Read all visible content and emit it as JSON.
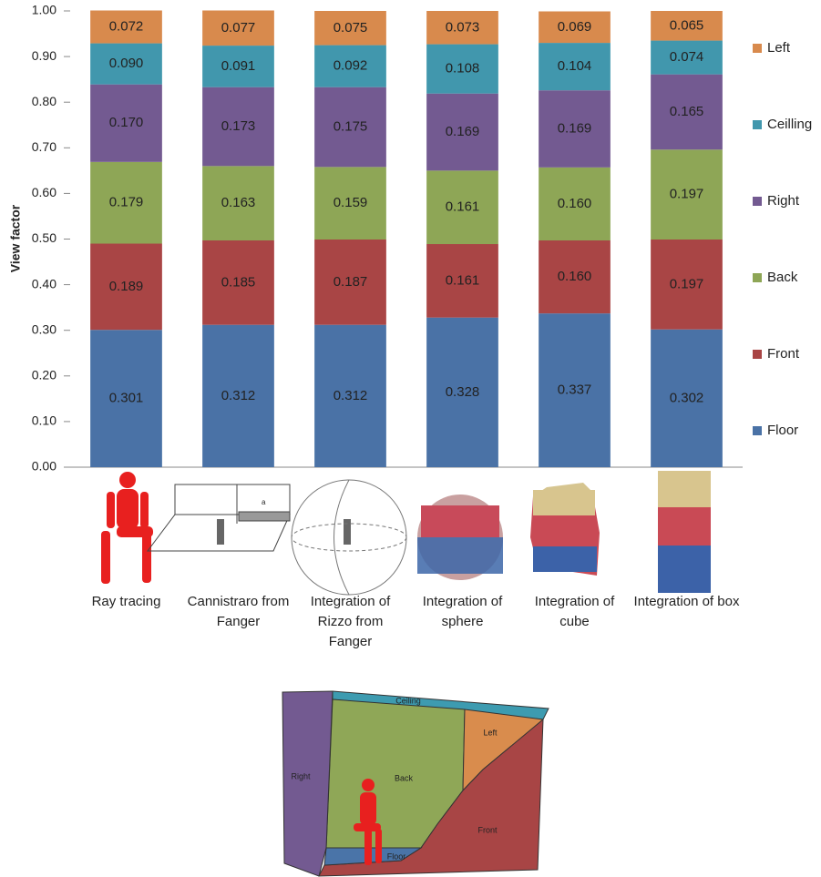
{
  "chart_data": {
    "type": "stacked_bar",
    "y_label": "View factor",
    "categories": [
      "Ray tracing",
      "Cannistraro from Fanger",
      "Integration of Rizzo from Fanger",
      "Integration of sphere",
      "Integration of cube",
      "Integration of box"
    ],
    "series": [
      {
        "name": "Floor",
        "color": "#4a72a6",
        "values": [
          0.301,
          0.312,
          0.312,
          0.328,
          0.337,
          0.302
        ],
        "value_labels": [
          "0.301",
          "0.312",
          "0.312",
          "0.328",
          "0.337",
          "0.302"
        ]
      },
      {
        "name": "Front",
        "color": "#a94545",
        "values": [
          0.189,
          0.185,
          0.187,
          0.161,
          0.16,
          0.197
        ],
        "value_labels": [
          "0.189",
          "0.185",
          "0.187",
          "0.161",
          "0.160",
          "0.197"
        ]
      },
      {
        "name": "Back",
        "color": "#8ea656",
        "values": [
          0.179,
          0.163,
          0.159,
          0.161,
          0.16,
          0.197
        ],
        "value_labels": [
          "0.179",
          "0.163",
          "0.159",
          "0.161",
          "0.160",
          "0.197"
        ]
      },
      {
        "name": "Right",
        "color": "#735a91",
        "values": [
          0.17,
          0.173,
          0.175,
          0.169,
          0.169,
          0.165
        ],
        "value_labels": [
          "0.170",
          "0.173",
          "0.175",
          "0.169",
          "0.169",
          "0.165"
        ]
      },
      {
        "name": "Ceilling",
        "color": "#4197ad",
        "values": [
          0.09,
          0.091,
          0.092,
          0.108,
          0.104,
          0.074
        ],
        "value_labels": [
          "0.090",
          "0.091",
          "0.092",
          "0.108",
          "0.104",
          "0.074"
        ]
      },
      {
        "name": "Left",
        "color": "#d88a4d",
        "values": [
          0.072,
          0.077,
          0.075,
          0.073,
          0.069,
          0.065
        ],
        "value_labels": [
          "0.072",
          "0.077",
          "0.075",
          "0.073",
          "0.069",
          "0.065"
        ]
      }
    ],
    "ylim": [
      0,
      1
    ],
    "yticks": [
      {
        "value": 0,
        "label": "0.00"
      },
      {
        "value": 0.1,
        "label": "0.10"
      },
      {
        "value": 0.2,
        "label": "0.20"
      },
      {
        "value": 0.3,
        "label": "0.30"
      },
      {
        "value": 0.4,
        "label": "0.40"
      },
      {
        "value": 0.5,
        "label": "0.50"
      },
      {
        "value": 0.6,
        "label": "0.60"
      },
      {
        "value": 0.7,
        "label": "0.70"
      },
      {
        "value": 0.8,
        "label": "0.80"
      },
      {
        "value": 0.9,
        "label": "0.90"
      },
      {
        "value": 1,
        "label": "1.00"
      }
    ],
    "grid": false,
    "legend": "right"
  },
  "diagram": {
    "labels": {
      "ceiling": "Ceiling",
      "left": "Left",
      "back": "Back",
      "right": "Right",
      "front": "Front",
      "floor": "Floor"
    }
  }
}
